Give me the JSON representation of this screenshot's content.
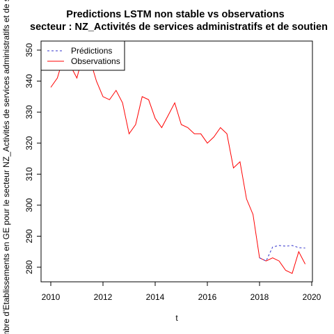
{
  "chart_data": {
    "type": "line",
    "title": "Predictions LSTM non stable vs observations",
    "subtitle": "secteur : NZ_Activités de services administratifs et de soutien",
    "xlabel": "t",
    "ylabel": "Nombre d'Etablissements en GE pour le secteur NZ_Activités de services administratifs et de soutien",
    "xlim": [
      2010,
      2020
    ],
    "ylim": [
      278,
      352
    ],
    "x_ticks": [
      2010,
      2012,
      2014,
      2016,
      2018,
      2020
    ],
    "y_ticks": [
      280,
      290,
      300,
      310,
      320,
      330,
      340,
      350
    ],
    "grid": false,
    "legend_position": "top-left",
    "series": [
      {
        "name": "Prédictions",
        "color": "#3333cc",
        "dashed": true,
        "x": [
          2018.0,
          2018.25,
          2018.5,
          2018.75,
          2019.0,
          2019.25,
          2019.5,
          2019.75
        ],
        "y": [
          283,
          282,
          286.5,
          287,
          286.8,
          287,
          286.3,
          286.2
        ]
      },
      {
        "name": "Observations",
        "color": "#ff0000",
        "dashed": false,
        "x": [
          2010.0,
          2010.25,
          2010.5,
          2010.75,
          2011.0,
          2011.25,
          2011.5,
          2011.75,
          2012.0,
          2012.25,
          2012.5,
          2012.75,
          2013.0,
          2013.25,
          2013.5,
          2013.75,
          2014.0,
          2014.25,
          2014.5,
          2014.75,
          2015.0,
          2015.25,
          2015.5,
          2015.75,
          2016.0,
          2016.25,
          2016.5,
          2016.75,
          2017.0,
          2017.25,
          2017.5,
          2017.75,
          2018.0,
          2018.25,
          2018.5,
          2018.75,
          2019.0,
          2019.25,
          2019.5,
          2019.75
        ],
        "y": [
          338,
          341,
          348,
          345,
          341,
          349,
          347,
          340,
          335,
          334,
          337,
          333,
          323,
          326,
          335,
          334,
          328,
          325,
          329,
          333,
          326,
          325,
          323,
          323,
          320,
          322,
          325,
          323,
          312,
          314,
          302,
          297,
          283,
          282,
          283,
          282,
          279,
          278,
          285,
          281
        ]
      }
    ]
  }
}
